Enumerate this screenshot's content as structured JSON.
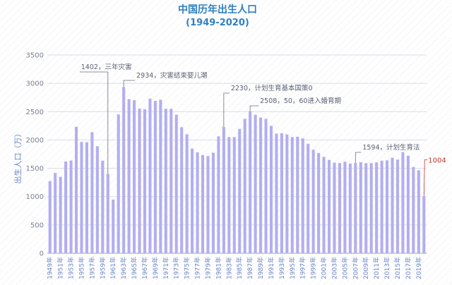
{
  "chart_data": {
    "type": "bar",
    "title": "中国历年出生人口",
    "subtitle": "(1949-2020)",
    "ylabel": "出生人口（万）",
    "xlabel": "",
    "ylim": [
      0,
      3500
    ],
    "yticks": [
      "0",
      "500",
      "1000",
      "1500",
      "2000",
      "2500",
      "3000",
      "3500"
    ],
    "grid": true,
    "colors": {
      "bar": "#b3aef0",
      "last_bar": "#b3aef0",
      "title": "#2f7fc1",
      "last_label": "#c0392b"
    },
    "categories": [
      "1949年",
      "1950年",
      "1951年",
      "1952年",
      "1953年",
      "1954年",
      "1955年",
      "1956年",
      "1957年",
      "1958年",
      "1959年",
      "1960年",
      "1961年",
      "1962年",
      "1963年",
      "1964年",
      "1965年",
      "1966年",
      "1967年",
      "1968年",
      "1969年",
      "1970年",
      "1971年",
      "1972年",
      "1973年",
      "1974年",
      "1975年",
      "1976年",
      "1977年",
      "1978年",
      "1979年",
      "1980年",
      "1981年",
      "1982年",
      "1983年",
      "1984年",
      "1985年",
      "1986年",
      "1987年",
      "1988年",
      "1989年",
      "1990年",
      "1991年",
      "1992年",
      "1993年",
      "1994年",
      "1995年",
      "1996年",
      "1997年",
      "1998年",
      "1999年",
      "2000年",
      "2001年",
      "2002年",
      "2003年",
      "2004年",
      "2005年",
      "2006年",
      "2007年",
      "2008年",
      "2009年",
      "2010年",
      "2011年",
      "2012年",
      "2013年",
      "2014年",
      "2015年",
      "2016年",
      "2017年",
      "2018年",
      "2019年",
      "2020年"
    ],
    "values": [
      1275,
      1419,
      1349,
      1622,
      1637,
      2232,
      1965,
      1961,
      2138,
      1889,
      1635,
      1402,
      949,
      2451,
      2934,
      2721,
      2704,
      2554,
      2543,
      2731,
      2690,
      2710,
      2551,
      2550,
      2447,
      2226,
      2102,
      1849,
      1783,
      1733,
      1715,
      1776,
      2064,
      2230,
      2052,
      2050,
      2196,
      2374,
      2508,
      2445,
      2396,
      2374,
      2250,
      2113,
      2120,
      2098,
      2052,
      2057,
      2028,
      1934,
      1827,
      1771,
      1702,
      1647,
      1599,
      1593,
      1617,
      1584,
      1594,
      1608,
      1591,
      1592,
      1604,
      1635,
      1640,
      1687,
      1655,
      1786,
      1723,
      1523,
      1465,
      1004
    ],
    "x_tick_labels": [
      "1949年",
      "1951年",
      "1953年",
      "1955年",
      "1957年",
      "1959年",
      "1961年",
      "1963年",
      "1965年",
      "1967年",
      "1969年",
      "1971年",
      "1973年",
      "1975年",
      "1977年",
      "1979年",
      "1981年",
      "1983年",
      "1985年",
      "1987年",
      "1989年",
      "1991年",
      "1993年",
      "1995年",
      "1997年",
      "1999年",
      "2001年",
      "2003年",
      "2005年",
      "2007年",
      "2009年",
      "2011年",
      "2013年",
      "2015年",
      "2017年",
      "2019年"
    ],
    "annotations": [
      {
        "index": 11,
        "text": "1402，三年灾害"
      },
      {
        "index": 14,
        "text": "2934，灾害结束婴儿潮"
      },
      {
        "index": 33,
        "text": "2230，计划生育基本国策0"
      },
      {
        "index": 38,
        "text": "2508，50，60进入婚育期"
      },
      {
        "index": 58,
        "text": "1594，计划生育法"
      }
    ],
    "end_label": {
      "index": 71,
      "text": "1004"
    }
  }
}
